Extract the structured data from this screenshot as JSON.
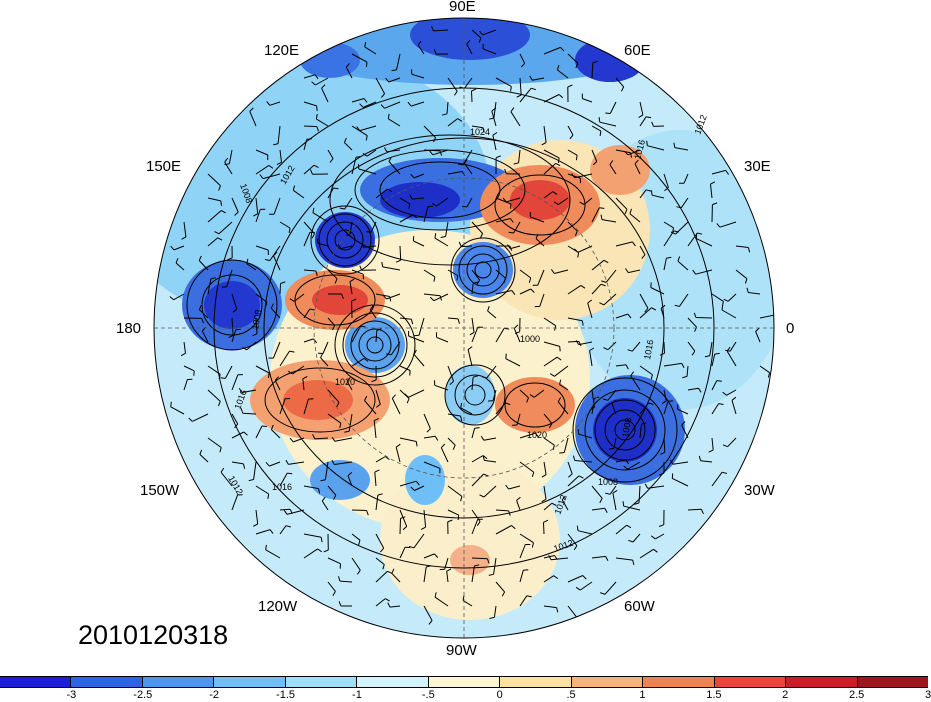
{
  "timestamp": "2010120318",
  "longitude_labels": {
    "lon_90e": "90E",
    "lon_120e": "120E",
    "lon_60e": "60E",
    "lon_150e": "150E",
    "lon_30e": "30E",
    "lon_180": "180",
    "lon_0": "0",
    "lon_150w": "150W",
    "lon_30w": "30W",
    "lon_120w": "120W",
    "lon_60w": "60W",
    "lon_90w": "90W"
  },
  "contour_labels": [
    "1024",
    "1012",
    "1008",
    "1012",
    "1016",
    "1008",
    "1000",
    "1016",
    "1020",
    "1008",
    "1012",
    "1012",
    "1016",
    "1016",
    "1012",
    "1020",
    "1008"
  ],
  "colorbar": {
    "colors": [
      "#1e1ed2",
      "#2d64e6",
      "#4b96f0",
      "#6ebef8",
      "#9ee0fc",
      "#d2f2fc",
      "#fcf5d2",
      "#fce1a0",
      "#f8b478",
      "#f08250",
      "#e6463c",
      "#c81e28",
      "#a0141e"
    ],
    "tick_labels": [
      "-3",
      "-2.5",
      "-2",
      "-1.5",
      "-1",
      "-.5",
      "0",
      ".5",
      "1",
      "1.5",
      "2",
      "2.5",
      "3"
    ]
  }
}
